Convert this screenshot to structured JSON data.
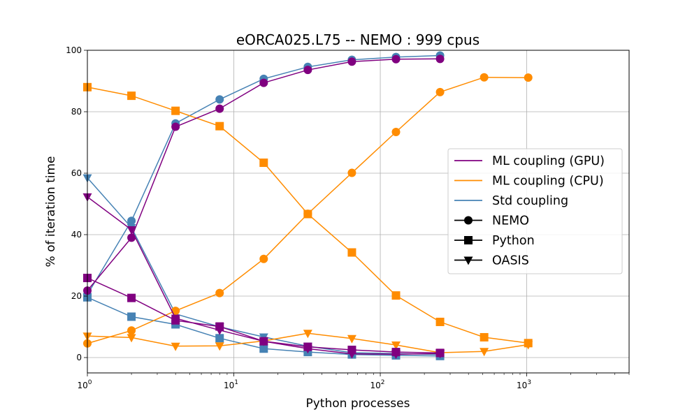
{
  "chart_data": {
    "type": "line",
    "title": "eORCA025.L75 -- NEMO : 999 cpus",
    "xlabel": "Python processes",
    "ylabel": "% of iteration time",
    "xscale": "log",
    "xlim": [
      1,
      5000
    ],
    "ylim": [
      -5,
      100
    ],
    "xticks": [
      {
        "value": 1,
        "base": "10",
        "exp": "0"
      },
      {
        "value": 10,
        "base": "10",
        "exp": "1"
      },
      {
        "value": 100,
        "base": "10",
        "exp": "2"
      },
      {
        "value": 1000,
        "base": "10",
        "exp": "3"
      }
    ],
    "yticks": [
      0,
      20,
      40,
      60,
      80,
      100
    ],
    "grid": true,
    "legend_position": "center-right",
    "legend": {
      "colors": [
        {
          "label": "ML coupling (GPU)",
          "color": "#800080"
        },
        {
          "label": "ML coupling (CPU)",
          "color": "#ff8c00"
        },
        {
          "label": "Std coupling",
          "color": "#4682b4"
        }
      ],
      "markers": [
        {
          "label": "NEMO",
          "marker": "circle"
        },
        {
          "label": "Python",
          "marker": "square"
        },
        {
          "label": "OASIS",
          "marker": "triangle-down"
        }
      ]
    },
    "series": [
      {
        "coupling": "Std coupling",
        "component": "NEMO",
        "color": "#4682b4",
        "marker": "circle",
        "x": [
          1,
          2,
          4,
          8,
          16,
          32,
          64,
          128,
          256
        ],
        "y": [
          20.5,
          44.5,
          76.2,
          84,
          90.7,
          94.6,
          96.9,
          97.8,
          98.3
        ]
      },
      {
        "coupling": "Std coupling",
        "component": "Python",
        "color": "#4682b4",
        "marker": "square",
        "x": [
          1,
          2,
          4,
          8,
          16,
          32,
          64,
          128,
          256
        ],
        "y": [
          19.6,
          13.3,
          10.8,
          6.3,
          2.9,
          1.8,
          1.0,
          0.7,
          0.5
        ]
      },
      {
        "coupling": "Std coupling",
        "component": "OASIS",
        "color": "#4682b4",
        "marker": "triangle-down",
        "x": [
          1,
          2,
          4,
          8,
          16,
          32,
          64,
          128,
          256
        ],
        "y": [
          58.5,
          42.3,
          14.2,
          10.0,
          6.7,
          3.7,
          1.6,
          1.3,
          1.0
        ]
      },
      {
        "coupling": "ML coupling (CPU)",
        "component": "NEMO",
        "color": "#ff8c00",
        "marker": "circle",
        "x": [
          1,
          2,
          4,
          8,
          16,
          32,
          64,
          128,
          256,
          512,
          1024
        ],
        "y": [
          4.6,
          8.8,
          15.2,
          21.0,
          32.1,
          46.8,
          60.1,
          73.4,
          86.4,
          91.2,
          91.1
        ]
      },
      {
        "coupling": "ML coupling (CPU)",
        "component": "Python",
        "color": "#ff8c00",
        "marker": "square",
        "x": [
          1,
          2,
          4,
          8,
          16,
          32,
          64,
          128,
          256,
          512,
          1024
        ],
        "y": [
          88.0,
          85.2,
          80.3,
          75.3,
          63.4,
          46.7,
          34.2,
          20.2,
          11.6,
          6.6,
          4.7
        ]
      },
      {
        "coupling": "ML coupling (CPU)",
        "component": "OASIS",
        "color": "#ff8c00",
        "marker": "triangle-down",
        "x": [
          1,
          2,
          4,
          8,
          16,
          32,
          64,
          128,
          256,
          512,
          1024
        ],
        "y": [
          7.0,
          6.5,
          3.7,
          3.8,
          5.4,
          7.9,
          6.2,
          4.1,
          1.6,
          2.0,
          4.2
        ]
      },
      {
        "coupling": "ML coupling (GPU)",
        "component": "NEMO",
        "color": "#800080",
        "marker": "circle",
        "x": [
          1,
          2,
          4,
          8,
          16,
          32,
          64,
          128,
          256
        ],
        "y": [
          21.8,
          39.0,
          75.1,
          81.0,
          89.4,
          93.6,
          96.3,
          97.1,
          97.2
        ]
      },
      {
        "coupling": "ML coupling (GPU)",
        "component": "Python",
        "color": "#800080",
        "marker": "square",
        "x": [
          1,
          2,
          4,
          8,
          16,
          32,
          64,
          128,
          256
        ],
        "y": [
          25.9,
          19.4,
          12.1,
          10.1,
          5.3,
          3.5,
          2.5,
          1.8,
          1.5
        ]
      },
      {
        "coupling": "ML coupling (GPU)",
        "component": "OASIS",
        "color": "#800080",
        "marker": "triangle-down",
        "x": [
          1,
          2,
          4,
          8,
          16,
          32,
          64,
          128,
          256
        ],
        "y": [
          52.3,
          41.6,
          12.8,
          8.9,
          5.3,
          2.9,
          1.2,
          1.1,
          1.3
        ]
      }
    ]
  }
}
